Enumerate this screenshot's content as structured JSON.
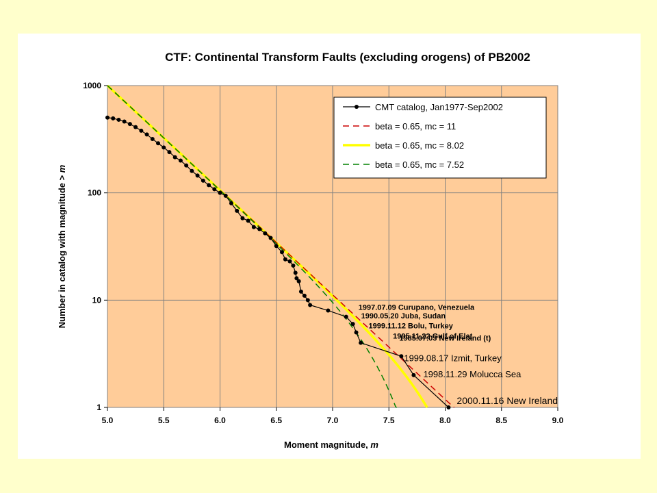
{
  "chart_data": {
    "type": "line",
    "title": "CTF: Continental Transform Faults (excluding orogens) of PB2002",
    "xlabel": "Moment magnitude, ",
    "xlabel_var": "m",
    "ylabel": "Number in catalog with magnitude > ",
    "ylabel_var": "m",
    "x_scale": "linear",
    "y_scale": "log",
    "xlim": [
      5.0,
      9.0
    ],
    "ylim": [
      1,
      1000
    ],
    "x_ticks": [
      "5.0",
      "5.5",
      "6.0",
      "6.5",
      "7.0",
      "7.5",
      "8.0",
      "8.5",
      "9.0"
    ],
    "y_ticks": [
      "1",
      "10",
      "100",
      "1000"
    ],
    "grid": "vertical and horizontal",
    "legend_position": "top-right",
    "plot_background": "#FFCC99",
    "series": [
      {
        "name": "CMT catalog, Jan1977-Sep2002",
        "color": "#000000",
        "style": "solid-with-markers",
        "points": [
          [
            5.0,
            503
          ],
          [
            5.05,
            495
          ],
          [
            5.1,
            480
          ],
          [
            5.15,
            462
          ],
          [
            5.2,
            438
          ],
          [
            5.25,
            410
          ],
          [
            5.3,
            380
          ],
          [
            5.35,
            350
          ],
          [
            5.4,
            318
          ],
          [
            5.45,
            290
          ],
          [
            5.5,
            265
          ],
          [
            5.55,
            240
          ],
          [
            5.6,
            215
          ],
          [
            5.65,
            200
          ],
          [
            5.7,
            180
          ],
          [
            5.75,
            160
          ],
          [
            5.8,
            145
          ],
          [
            5.85,
            130
          ],
          [
            5.9,
            118
          ],
          [
            5.95,
            108
          ],
          [
            6.0,
            100
          ],
          [
            6.05,
            94
          ],
          [
            6.1,
            80
          ],
          [
            6.15,
            68
          ],
          [
            6.2,
            58
          ],
          [
            6.25,
            55
          ],
          [
            6.3,
            48
          ],
          [
            6.35,
            46
          ],
          [
            6.4,
            42
          ],
          [
            6.45,
            38
          ],
          [
            6.5,
            32
          ],
          [
            6.55,
            28
          ],
          [
            6.58,
            24
          ],
          [
            6.62,
            23
          ],
          [
            6.65,
            21
          ],
          [
            6.67,
            18
          ],
          [
            6.68,
            16
          ],
          [
            6.7,
            15
          ],
          [
            6.72,
            12
          ],
          [
            6.75,
            11
          ],
          [
            6.78,
            10
          ],
          [
            6.8,
            9
          ],
          [
            6.96,
            8
          ],
          [
            7.12,
            7
          ],
          [
            7.18,
            6
          ],
          [
            7.21,
            5
          ],
          [
            7.25,
            4
          ],
          [
            7.61,
            3
          ],
          [
            7.72,
            2
          ],
          [
            8.03,
            1
          ]
        ]
      },
      {
        "name": "beta = 0.65, mc = 11",
        "color": "#CC0000",
        "style": "dashed",
        "beta": 0.65,
        "mc": 11
      },
      {
        "name": "beta = 0.65, mc = 8.02",
        "color": "#FFFF00",
        "style": "solid-thick",
        "beta": 0.65,
        "mc": 8.02
      },
      {
        "name": "beta = 0.65, mc = 7.52",
        "color": "#008000",
        "style": "dashed",
        "beta": 0.65,
        "mc": 7.52
      }
    ],
    "annotations": [
      {
        "text": "1997.07.09 Curupano, Venezuela",
        "x": 7.12,
        "y": 7,
        "size": "small"
      },
      {
        "text": "1990.05.20 Juba, Sudan",
        "x": 7.18,
        "y": 6,
        "size": "small"
      },
      {
        "text": "1999.11.12 Bolu, Turkey",
        "x": 7.21,
        "y": 5,
        "size": "small"
      },
      {
        "text": "1995.11.22 Gulf of Elat",
        "x": 7.25,
        "y": 4,
        "size": "small"
      },
      {
        "text": "1985.07.03 New Ireland (t)",
        "x": 7.3,
        "y": 3.4,
        "size": "small"
      },
      {
        "text": "1999.08.17 Izmit, Turkey",
        "x": 7.61,
        "y": 3,
        "size": "medium"
      },
      {
        "text": "1998.11.29 Molucca Sea",
        "x": 7.72,
        "y": 2,
        "size": "medium"
      },
      {
        "text": "2000.11.16 New Ireland",
        "x": 8.03,
        "y": 1,
        "size": "large"
      }
    ]
  }
}
